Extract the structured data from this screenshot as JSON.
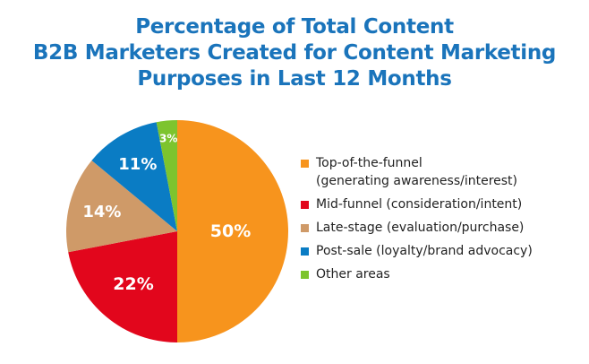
{
  "title_lines": [
    "Percentage of Total Content",
    "B2B Marketers Created for Content Marketing",
    "Purposes in Last 12 Months"
  ],
  "chart_data": {
    "type": "pie",
    "title": "Percentage of Total Content B2B Marketers Created for Content Marketing Purposes in Last 12 Months",
    "legend_position": "right",
    "slices": [
      {
        "label": "Top-of-the-funnel\n(generating awareness/interest)",
        "value": 50,
        "display": "50%",
        "color": "#f7941d"
      },
      {
        "label": "Mid-funnel (consideration/intent)",
        "value": 22,
        "display": "22%",
        "color": "#e2061c"
      },
      {
        "label": "Late-stage (evaluation/purchase)",
        "value": 14,
        "display": "14%",
        "color": "#cf9a68"
      },
      {
        "label": "Post-sale (loyalty/brand advocacy)",
        "value": 11,
        "display": "11%",
        "color": "#0a7cc4"
      },
      {
        "label": "Other areas",
        "value": 3,
        "display": "3%",
        "color": "#7dc42e"
      }
    ]
  }
}
